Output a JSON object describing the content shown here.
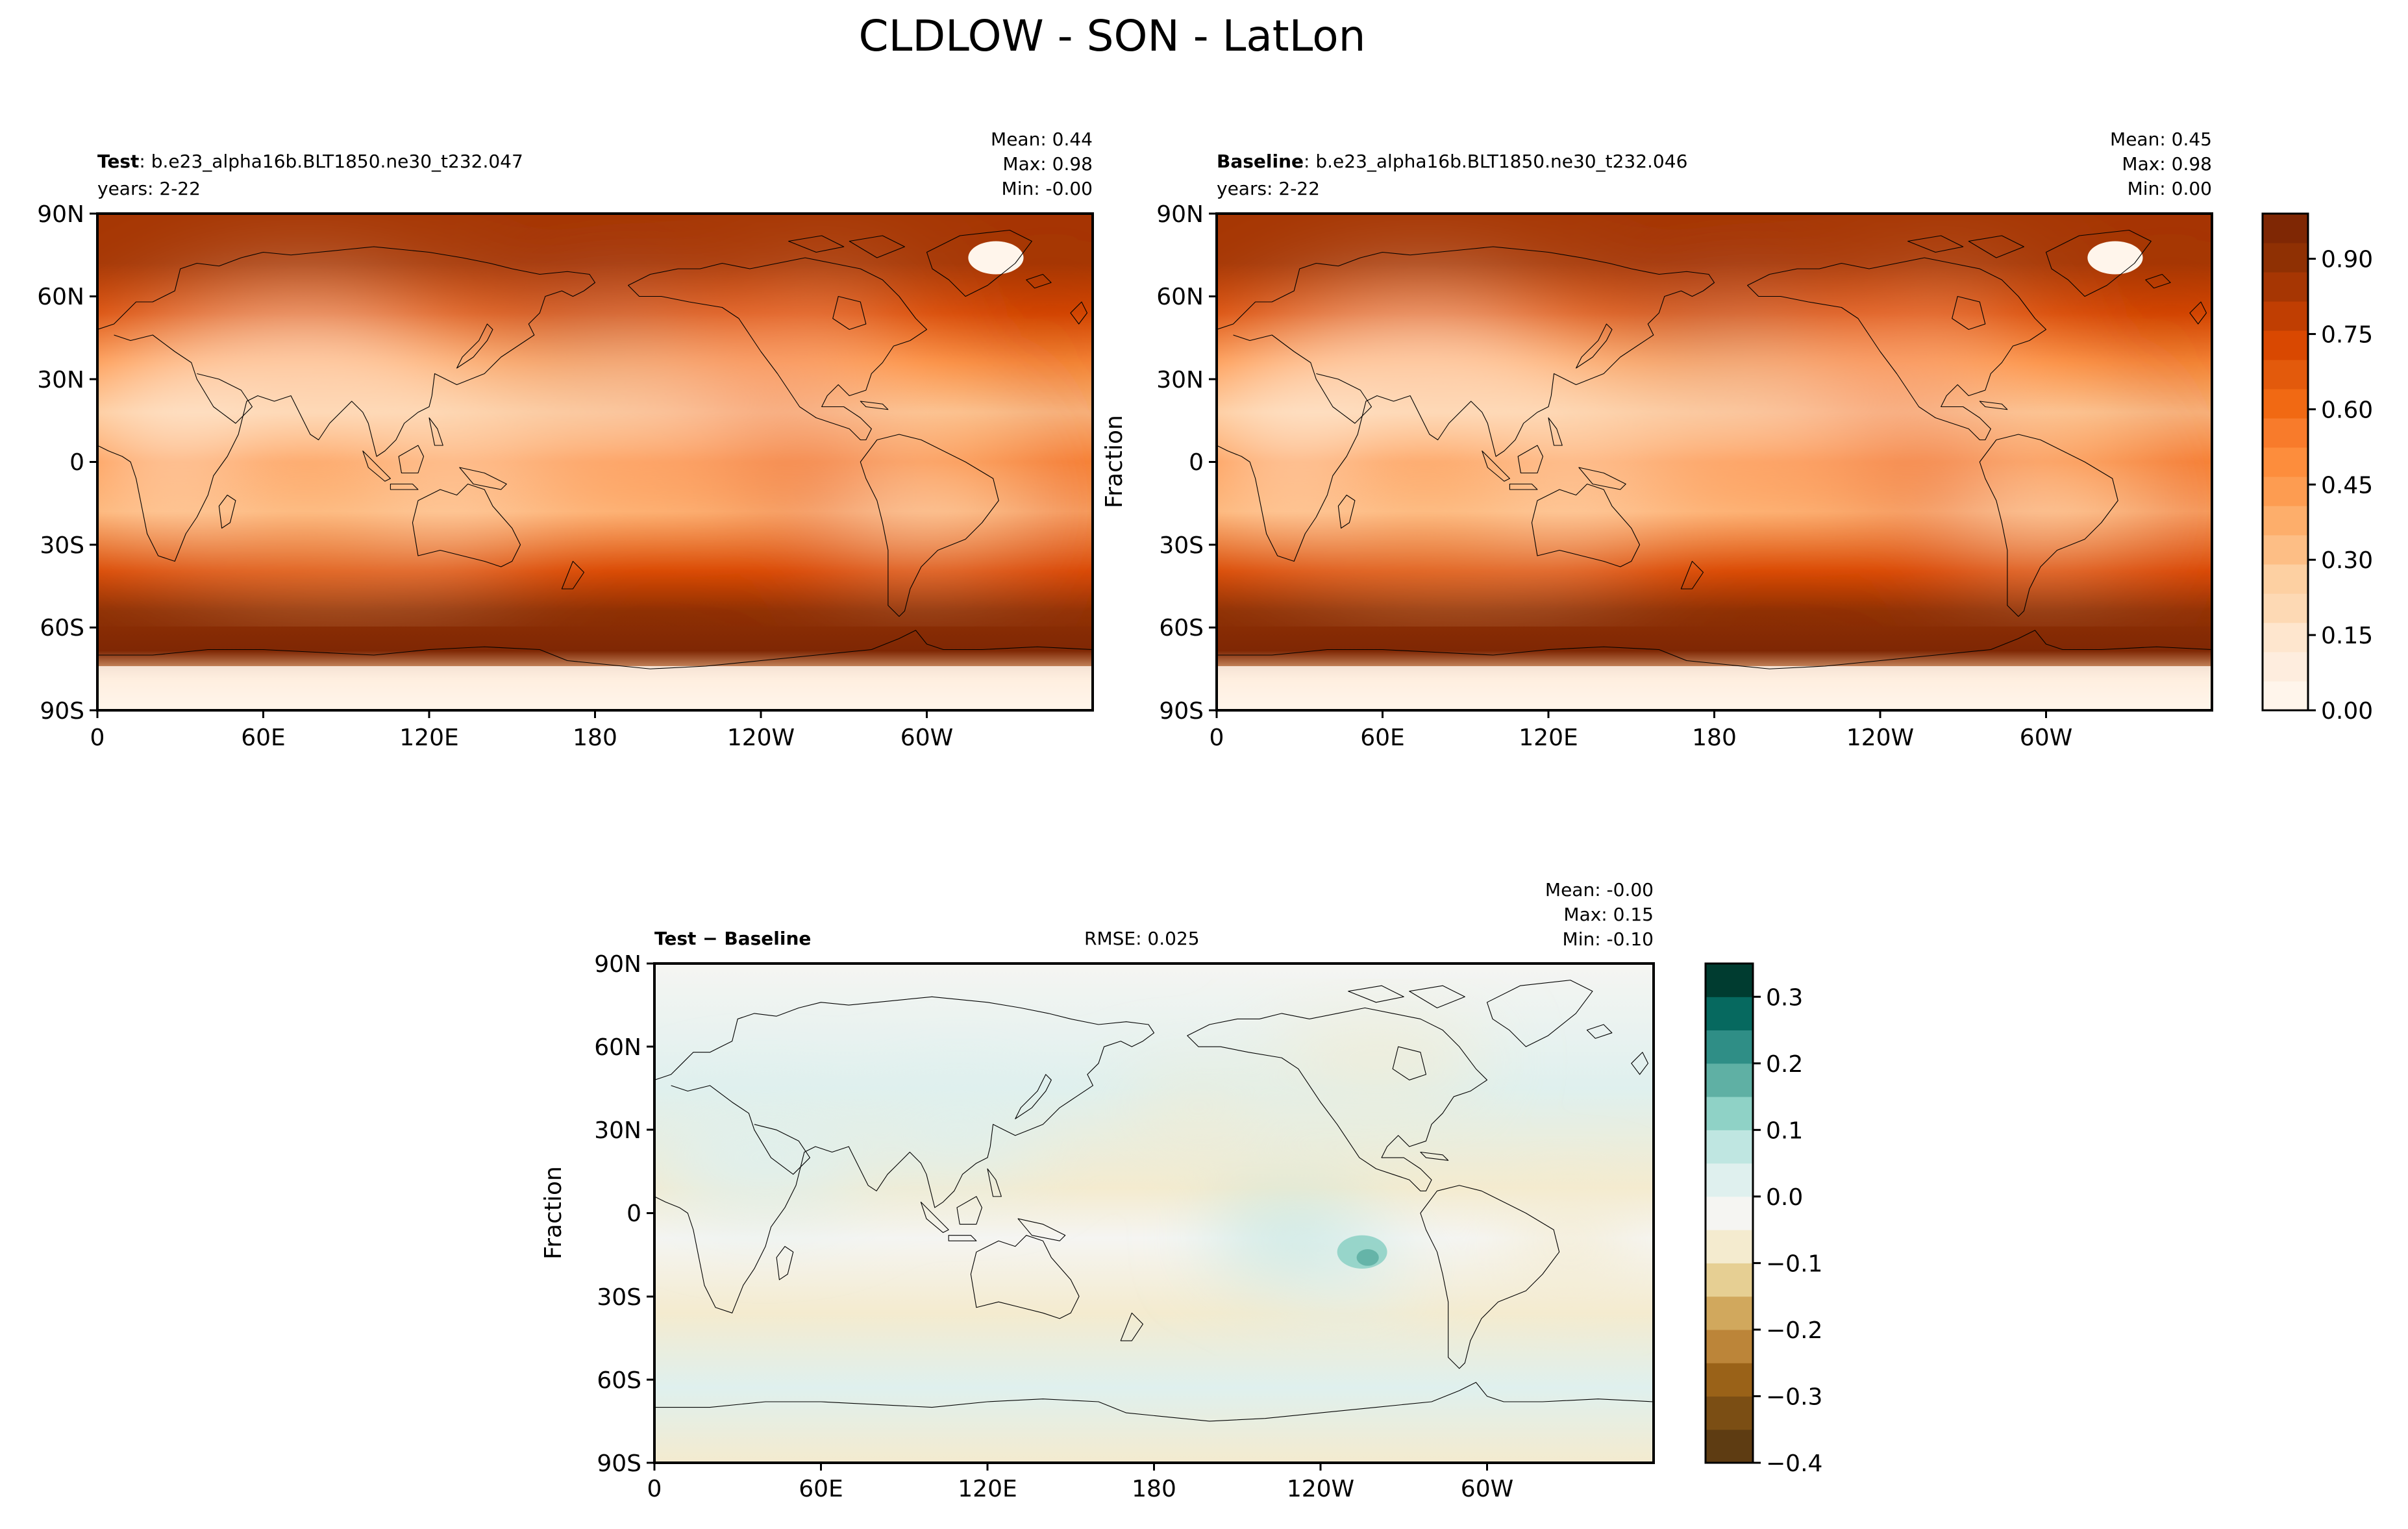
{
  "figure": {
    "title": "CLDLOW - SON - LatLon"
  },
  "colors": {
    "oranges": [
      "#fff5eb",
      "#feedde",
      "#fee6ce",
      "#fdd9b4",
      "#fdd0a2",
      "#fdbe85",
      "#fdae6b",
      "#fd9c51",
      "#fd8d3c",
      "#f87b2b",
      "#f16913",
      "#e35a0c",
      "#d94801",
      "#c03e02",
      "#a63603",
      "#8f3003",
      "#7f2704"
    ],
    "brbg": [
      "#5e3c12",
      "#7b4e14",
      "#9a6218",
      "#bc8539",
      "#d1a85d",
      "#e6cf93",
      "#f4ebcf",
      "#f5f5f2",
      "#dff0ee",
      "#bfe6e1",
      "#8fd2c6",
      "#5fb0a4",
      "#2f8e86",
      "#06695f",
      "#003c30"
    ],
    "land_line": "#000000"
  },
  "chart_data": [
    {
      "type": "heatmap",
      "panel": "test",
      "label_bold": "Test",
      "label_rest": ": b.e23_alpha16b.BLT1850.ne30_t232.047",
      "years": "years: 2-22",
      "stats": [
        "Mean:  0.44",
        "Max:  0.98",
        "Min: -0.00"
      ],
      "x_ticks": [
        "0",
        "60E",
        "120E",
        "180",
        "120W",
        "60W"
      ],
      "y_ticks": [
        "90N",
        "60N",
        "30N",
        "0",
        "30S",
        "60S",
        "90S"
      ],
      "ylabel": "",
      "xlim": [
        0,
        360
      ],
      "ylim": [
        -90,
        90
      ],
      "value_range": [
        0,
        1
      ]
    },
    {
      "type": "heatmap",
      "panel": "baseline",
      "label_bold": "Baseline",
      "label_rest": ": b.e23_alpha16b.BLT1850.ne30_t232.046",
      "years": "years: 2-22",
      "stats": [
        "Mean:  0.45",
        "Max:  0.98",
        "Min:  0.00"
      ],
      "x_ticks": [
        "0",
        "60E",
        "120E",
        "180",
        "120W",
        "60W"
      ],
      "y_ticks": [
        "90N",
        "60N",
        "30N",
        "0",
        "30S",
        "60S",
        "90S"
      ],
      "ylabel": "Fraction",
      "xlim": [
        0,
        360
      ],
      "ylim": [
        -90,
        90
      ],
      "value_range": [
        0,
        1
      ],
      "colorbar": {
        "ticks": [
          "0.00",
          "0.15",
          "0.30",
          "0.45",
          "0.60",
          "0.75",
          "0.90"
        ],
        "values": [
          0,
          0.15,
          0.3,
          0.45,
          0.6,
          0.75,
          0.9
        ],
        "range": [
          0,
          0.99
        ]
      }
    },
    {
      "type": "heatmap",
      "panel": "diff",
      "label_bold": "Test − Baseline",
      "rmse": "RMSE: 0.025",
      "stats": [
        "Mean: -0.00",
        "Max:  0.15",
        "Min: -0.10"
      ],
      "x_ticks": [
        "0",
        "60E",
        "120E",
        "180",
        "120W",
        "60W"
      ],
      "y_ticks": [
        "90N",
        "60N",
        "30N",
        "0",
        "30S",
        "60S",
        "90S"
      ],
      "ylabel": "Fraction",
      "xlim": [
        0,
        360
      ],
      "ylim": [
        -90,
        90
      ],
      "value_range": [
        -0.4,
        0.35
      ],
      "colorbar": {
        "ticks": [
          "0.3",
          "0.2",
          "0.1",
          "0.0",
          "−0.1",
          "−0.2",
          "−0.3",
          "−0.4"
        ],
        "values": [
          0.3,
          0.2,
          0.1,
          0.0,
          -0.1,
          -0.2,
          -0.3,
          -0.4
        ],
        "range": [
          -0.4,
          0.35
        ]
      }
    }
  ]
}
